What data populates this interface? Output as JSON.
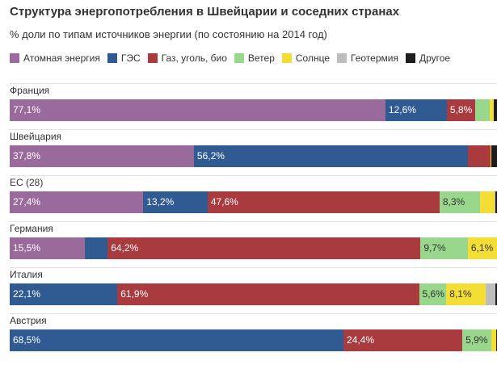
{
  "chart_data": {
    "type": "bar",
    "orientation": "horizontal",
    "stacked": true,
    "title": "Структура энергопотребления в Швейцарии и соседних странах",
    "subtitle": "% доли по типам источников энергии (по состоянию на 2014 год)",
    "legend_position": "top",
    "grid": false,
    "xlim": [
      0,
      100
    ],
    "categories": [
      "Франция",
      "Швейцария",
      "ЕС (28)",
      "Германия",
      "Италия",
      "Австрия"
    ],
    "series": [
      {
        "name": "Атомная энергия",
        "color": "#9b6a9c",
        "values": [
          77.1,
          37.8,
          27.4,
          15.5,
          0,
          0
        ]
      },
      {
        "name": "ГЭС",
        "color": "#2f5a92",
        "values": [
          12.6,
          56.2,
          13.2,
          4.6,
          22.1,
          68.5
        ]
      },
      {
        "name": "Газ, уголь, био",
        "color": "#a93a3e",
        "values": [
          5.8,
          4.6,
          47.6,
          64.2,
          61.9,
          24.4
        ]
      },
      {
        "name": "Ветер",
        "color": "#99d88c",
        "values": [
          3.0,
          0.1,
          8.3,
          9.7,
          5.6,
          5.9
        ]
      },
      {
        "name": "Солнце",
        "color": "#f4de35",
        "values": [
          0.9,
          0.1,
          3.0,
          6.1,
          8.1,
          1.1
        ]
      },
      {
        "name": "Геотермия",
        "color": "#bdbdbd",
        "values": [
          0,
          0,
          0.2,
          0,
          2.0,
          0
        ]
      },
      {
        "name": "Другое",
        "color": "#1c1c1c",
        "values": [
          0.6,
          1.2,
          0.3,
          0.4,
          0.3,
          0.1
        ]
      }
    ],
    "data_labels": [
      [
        "77,1%",
        "12,6%",
        "5,8%",
        "",
        "",
        "",
        ""
      ],
      [
        "37,8%",
        "56,2%",
        "",
        "",
        "",
        "",
        ""
      ],
      [
        "27,4%",
        "13,2%",
        "47,6%",
        "8,3%",
        "",
        "",
        ""
      ],
      [
        "15,5%",
        "",
        "64,2%",
        "9,7%",
        "6,1%",
        "",
        ""
      ],
      [
        "",
        "22,1%",
        "61,9%",
        "5,6%",
        "8,1%",
        "",
        ""
      ],
      [
        "",
        "68,5%",
        "24,4%",
        "5,9%",
        "",
        "",
        ""
      ]
    ]
  }
}
